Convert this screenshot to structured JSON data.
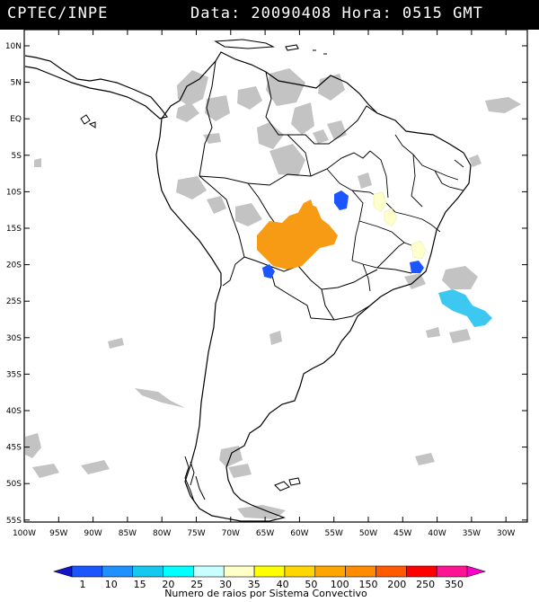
{
  "header": {
    "source": "CPTEC/INPE",
    "datetime": "Data: 20090408 Hora: 0515 GMT"
  },
  "axes": {
    "lat_labels": [
      "10N",
      "5N",
      "EQ",
      "5S",
      "10S",
      "15S",
      "20S",
      "25S",
      "30S",
      "35S",
      "40S",
      "45S",
      "50S",
      "55S"
    ],
    "lon_labels": [
      "100W",
      "95W",
      "90W",
      "85W",
      "80W",
      "75W",
      "70W",
      "65W",
      "60W",
      "55W",
      "50W",
      "45W",
      "40W",
      "35W",
      "30W"
    ]
  },
  "legend": {
    "title": "Numero de raios por Sistema Convectivo",
    "tick_labels": [
      "1",
      "10",
      "15",
      "20",
      "25",
      "30",
      "35",
      "40",
      "50",
      "100",
      "150",
      "200",
      "250",
      "350"
    ],
    "colors": [
      "#1414c8",
      "#1a55ff",
      "#1e90ff",
      "#14c8f0",
      "#00ffff",
      "#c8ffff",
      "#ffffc8",
      "#ffff00",
      "#ffd700",
      "#ffa500",
      "#ff8c00",
      "#ff5a00",
      "#ff0000",
      "#ff1493",
      "#ff00c8"
    ]
  },
  "colors": {
    "cloud": "#c3c3c3",
    "convection_orange": "#f79b14",
    "convection_blue": "#1a55ff",
    "convection_lightblue": "#3cc8f0",
    "convection_paleyellow": "#ffffcc",
    "coastline": "#000000"
  }
}
